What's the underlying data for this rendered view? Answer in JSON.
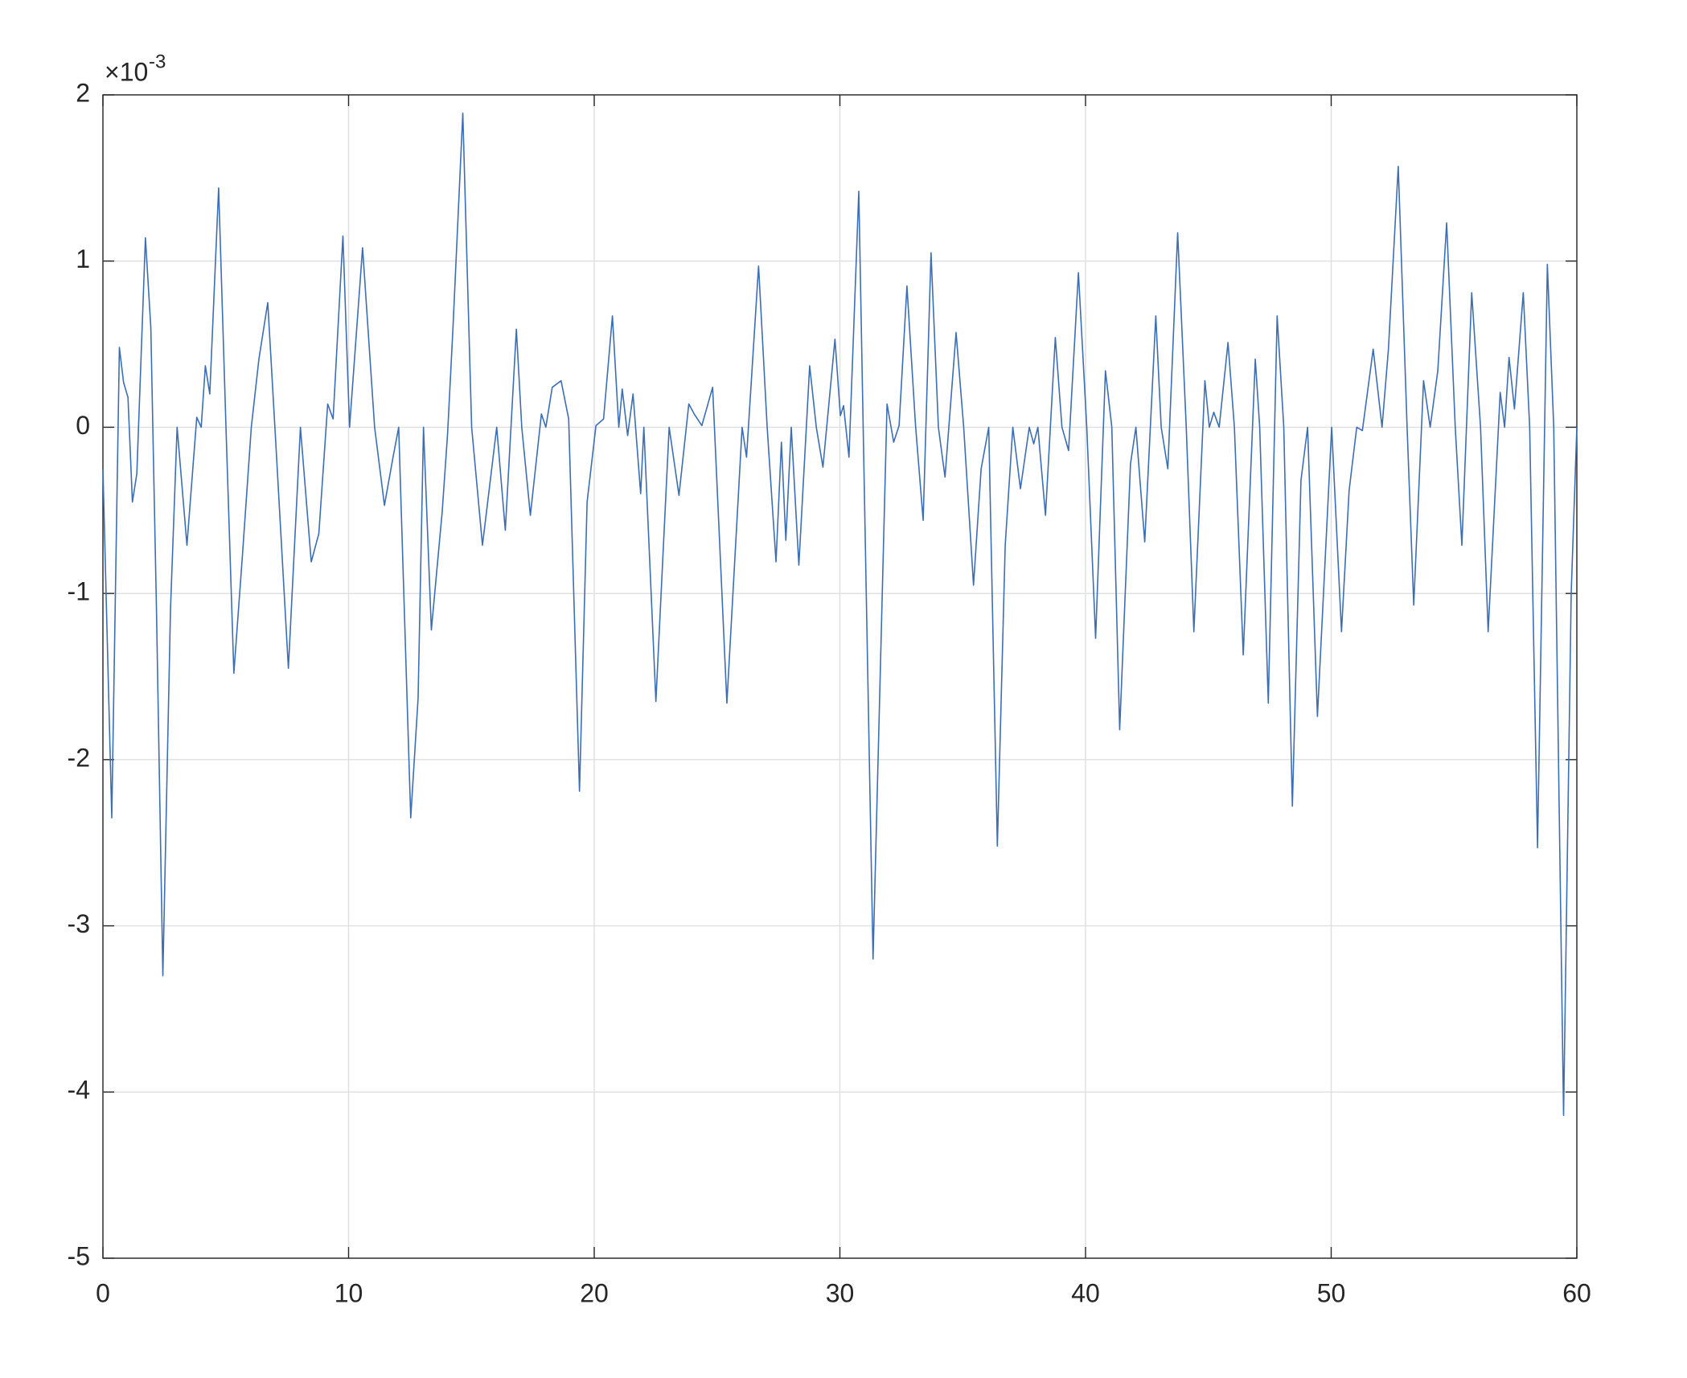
{
  "chart_data": {
    "type": "line",
    "x": [
      0,
      0.36,
      0.67,
      0.84,
      1.02,
      1.2,
      1.38,
      1.73,
      1.95,
      2.18,
      2.44,
      2.75,
      3.02,
      3.42,
      3.82,
      4.0,
      4.17,
      4.35,
      4.71,
      5.02,
      5.33,
      5.68,
      6.04,
      6.35,
      6.71,
      7.02,
      7.55,
      8.04,
      8.48,
      8.79,
      9.15,
      9.37,
      9.77,
      10.04,
      10.57,
      11.06,
      11.46,
      11.81,
      12.04,
      12.53,
      12.83,
      13.05,
      13.37,
      13.81,
      14.03,
      14.25,
      14.65,
      15.01,
      15.45,
      16.03,
      16.38,
      16.83,
      17.05,
      17.4,
      17.85,
      18.03,
      18.29,
      18.65,
      18.96,
      19.4,
      19.71,
      20.07,
      20.38,
      20.74,
      21.0,
      21.14,
      21.36,
      21.58,
      21.89,
      22.02,
      22.51,
      23.05,
      23.45,
      23.85,
      24.07,
      24.38,
      24.82,
      25.4,
      26.02,
      26.2,
      26.69,
      27.04,
      27.4,
      27.62,
      27.8,
      28.02,
      28.33,
      28.77,
      29.04,
      29.31,
      29.8,
      30.02,
      30.15,
      30.37,
      30.77,
      31.35,
      31.92,
      32.19,
      32.41,
      32.73,
      33.08,
      33.39,
      33.71,
      34.01,
      34.28,
      34.73,
      35.04,
      35.44,
      35.75,
      36.06,
      36.41,
      36.73,
      37.04,
      37.35,
      37.71,
      37.89,
      38.06,
      38.37,
      38.77,
      39.04,
      39.31,
      39.71,
      40.05,
      40.41,
      40.81,
      41.07,
      41.39,
      41.83,
      42.05,
      42.41,
      42.86,
      43.08,
      43.35,
      43.75,
      44.1,
      44.41,
      44.86,
      45.04,
      45.22,
      45.44,
      45.8,
      46.06,
      46.42,
      46.91,
      47.09,
      47.44,
      47.8,
      48.07,
      48.42,
      48.77,
      49.04,
      49.44,
      50.02,
      50.42,
      50.73,
      51.04,
      51.27,
      51.71,
      52.07,
      52.33,
      52.73,
      53.09,
      53.36,
      53.76,
      54.03,
      54.34,
      54.7,
      55.05,
      55.32,
      55.72,
      56.08,
      56.39,
      56.88,
      57.06,
      57.24,
      57.46,
      57.82,
      58.08,
      58.4,
      58.8,
      59.06,
      59.46,
      59.77,
      60.0
    ],
    "values": [
      -0.25,
      -2.35,
      0.48,
      0.27,
      0.18,
      -0.45,
      -0.28,
      1.14,
      0.6,
      -1.1,
      -3.3,
      -1.1,
      0,
      -0.71,
      0.06,
      0,
      0.37,
      0.2,
      1.44,
      -0.05,
      -1.48,
      -0.77,
      0,
      0.41,
      0.75,
      -0.05,
      -1.45,
      0,
      -0.81,
      -0.64,
      0.14,
      0.05,
      1.15,
      0,
      1.08,
      0,
      -0.47,
      -0.18,
      0,
      -2.35,
      -1.63,
      0,
      -1.22,
      -0.51,
      -0.04,
      0.6,
      1.89,
      0,
      -0.71,
      0,
      -0.62,
      0.59,
      0,
      -0.53,
      0.08,
      0,
      0.24,
      0.28,
      0.05,
      -2.19,
      -0.45,
      0.01,
      0.05,
      0.67,
      0,
      0.23,
      -0.05,
      0.2,
      -0.4,
      0,
      -1.65,
      0,
      -0.41,
      0.14,
      0.08,
      0.01,
      0.24,
      -1.66,
      0,
      -0.18,
      0.97,
      0,
      -0.81,
      -0.09,
      -0.68,
      0,
      -0.83,
      0.37,
      0,
      -0.24,
      0.53,
      0.07,
      0.13,
      -0.18,
      1.42,
      -3.2,
      0.14,
      -0.09,
      0.01,
      0.85,
      0.01,
      -0.56,
      1.05,
      0,
      -0.3,
      0.57,
      0,
      -0.95,
      -0.25,
      0,
      -2.52,
      -0.71,
      0,
      -0.37,
      0,
      -0.1,
      0,
      -0.53,
      0.54,
      0,
      -0.14,
      0.93,
      0,
      -1.27,
      0.34,
      0,
      -1.82,
      -0.22,
      0,
      -0.69,
      0.67,
      0,
      -0.25,
      1.17,
      0,
      -1.23,
      0.28,
      0,
      0.09,
      0,
      0.51,
      0,
      -1.37,
      0.41,
      0,
      -1.66,
      0.67,
      0,
      -2.28,
      -0.32,
      0,
      -1.74,
      0,
      -1.23,
      -0.38,
      0,
      -0.02,
      0.47,
      0,
      0.47,
      1.57,
      0,
      -1.07,
      0.28,
      0,
      0.34,
      1.23,
      0,
      -0.71,
      0.81,
      0,
      -1.23,
      0.21,
      0,
      0.42,
      0.11,
      0.81,
      0,
      -2.53,
      0.98,
      0,
      -4.14,
      -1.0,
      0
    ],
    "color": "#3c6eb4",
    "xlim": [
      0,
      60
    ],
    "xticks": [
      0,
      10,
      20,
      30,
      40,
      50,
      60
    ],
    "ylim": [
      -5,
      2
    ],
    "yticks": [
      -5,
      -4,
      -3,
      -2,
      -1,
      0,
      1,
      2
    ],
    "y_multiplier": "×10",
    "y_exponent": -3,
    "grid": true
  }
}
